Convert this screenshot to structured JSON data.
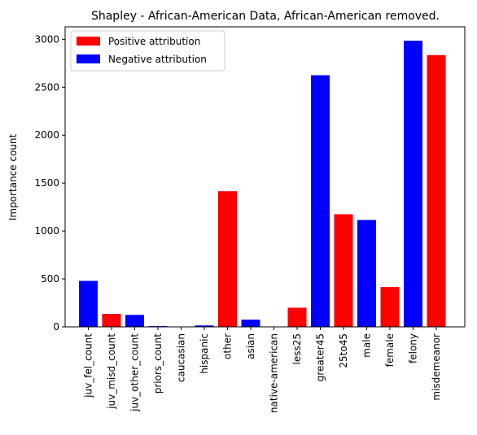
{
  "chart_data": {
    "type": "bar",
    "title": "Shapley - African-American Data, African-American removed.",
    "xlabel": "",
    "ylabel": "Importance count",
    "ylim": [
      0,
      3130
    ],
    "yticks": [
      0,
      500,
      1000,
      1500,
      2000,
      2500,
      3000
    ],
    "categories": [
      "juv_fel_count",
      "juv_misd_count",
      "juv_other_count",
      "priors_count",
      "caucasian",
      "hispanic",
      "other",
      "asian",
      "native-american",
      "less25",
      "greater45",
      "25to45",
      "male",
      "female",
      "felony",
      "misdemeanor"
    ],
    "values": [
      480,
      135,
      125,
      8,
      0,
      15,
      1415,
      75,
      0,
      200,
      2625,
      1175,
      1115,
      415,
      2985,
      2835
    ],
    "attribution": [
      "negative",
      "positive",
      "negative",
      "negative",
      "negative",
      "negative",
      "positive",
      "negative",
      "negative",
      "positive",
      "negative",
      "positive",
      "negative",
      "positive",
      "negative",
      "positive"
    ],
    "colors": {
      "positive": "#ff0000",
      "negative": "#0000ff"
    },
    "legend": {
      "placement": "top-left",
      "entries": [
        {
          "label": "Positive attribution",
          "key": "positive"
        },
        {
          "label": "Negative attribution",
          "key": "negative"
        }
      ]
    },
    "grid": false
  }
}
